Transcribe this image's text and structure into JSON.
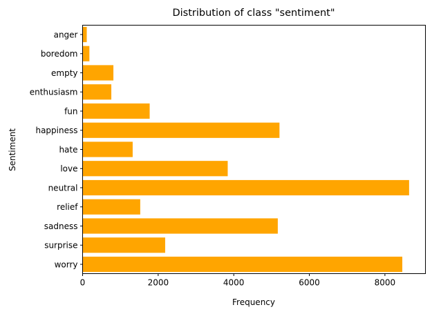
{
  "chart_data": {
    "type": "bar",
    "orientation": "horizontal",
    "title": "Distribution of class \"sentiment\"",
    "xlabel": "Frequency",
    "ylabel": "Sentiment",
    "categories": [
      "anger",
      "boredom",
      "empty",
      "enthusiasm",
      "fun",
      "happiness",
      "hate",
      "love",
      "neutral",
      "relief",
      "sadness",
      "surprise",
      "worry"
    ],
    "values": [
      110,
      180,
      815,
      760,
      1775,
      5210,
      1325,
      3840,
      8640,
      1525,
      5165,
      2185,
      8460
    ],
    "xlim": [
      0,
      9072
    ],
    "xticks": [
      0,
      2000,
      4000,
      6000,
      8000
    ],
    "bar_color": "#ffa500",
    "grid": false
  }
}
